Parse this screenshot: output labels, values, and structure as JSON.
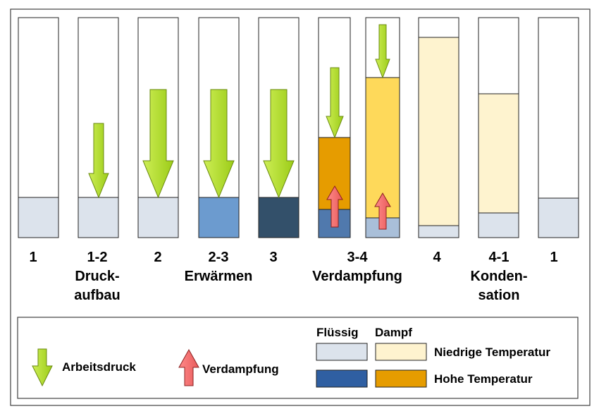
{
  "colors": {
    "liquid_low": "#dce3ec",
    "liquid_mid": "#6c9bcf",
    "liquid_dark": "#33506a",
    "liquid_high_legend": "#2f5fa2",
    "liquid_3_4a": "#5079ad",
    "liquid_3_4b": "#a9bfd9",
    "vapor_low": "#fef3cf",
    "vapor_high": "#e69c00",
    "vapor_mid": "#fed95a",
    "press_arrow": "#b5e234",
    "evap_arrow": "#f07070"
  },
  "steps": [
    {
      "label": "1",
      "caption": []
    },
    {
      "label": "1-2",
      "caption": [
        "Druck-",
        "aufbau"
      ]
    },
    {
      "label": "2",
      "caption": []
    },
    {
      "label": "2-3",
      "caption": [
        "Erwärmen"
      ]
    },
    {
      "label": "3",
      "caption": []
    },
    {
      "label": "3-4",
      "caption": [
        "Verdampfung"
      ]
    },
    {
      "label": "4",
      "caption": []
    },
    {
      "label": "4-1",
      "caption": [
        "Konden-",
        "sation"
      ]
    },
    {
      "label": "1",
      "caption": []
    }
  ],
  "legend": {
    "pressure_label": "Arbeitsdruck",
    "evaporation_label": "Verdampfung",
    "liquid_header": "Flüssig",
    "vapor_header": "Dampf",
    "low_temp_label": "Niedrige Temperatur",
    "high_temp_label": "Hohe Temperatur"
  }
}
